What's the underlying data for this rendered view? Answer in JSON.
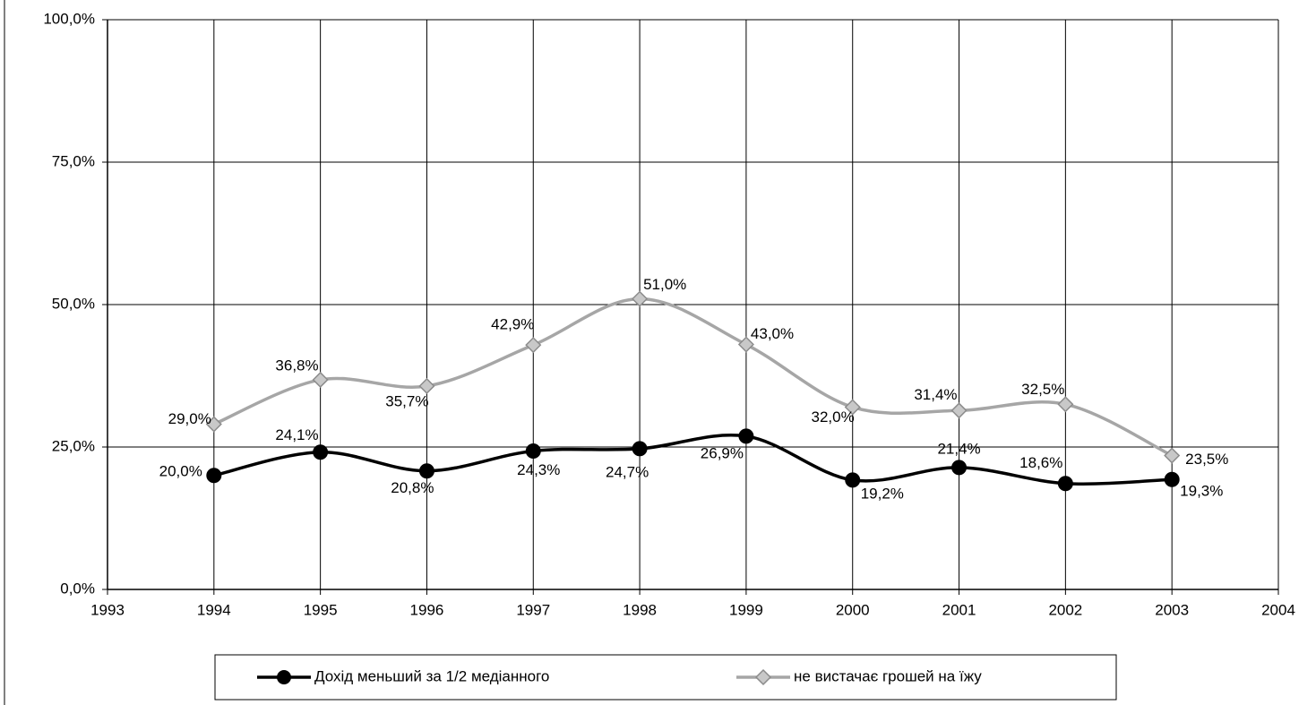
{
  "chart_data": {
    "type": "line",
    "x": [
      1994,
      1995,
      1996,
      1997,
      1998,
      1999,
      2000,
      2001,
      2002,
      2003
    ],
    "series": [
      {
        "name": "Дохід меньший за 1/2 медіанного",
        "color": "#000000",
        "marker": "circle",
        "values": [
          20.0,
          24.1,
          20.8,
          24.3,
          24.7,
          26.9,
          19.2,
          21.4,
          18.6,
          19.3
        ],
        "value_labels": [
          "20,0%",
          "24,1%",
          "20,8%",
          "24,3%",
          "24,7%",
          "26,9%",
          "19,2%",
          "21,4%",
          "18,6%",
          "19,3%"
        ]
      },
      {
        "name": "не вистачає грошей на їжу",
        "color": "#a6a6a6",
        "marker": "diamond",
        "values": [
          29.0,
          36.8,
          35.7,
          42.9,
          51.0,
          43.0,
          32.0,
          31.4,
          32.5,
          23.5
        ],
        "value_labels": [
          "29,0%",
          "36,8%",
          "35,7%",
          "42,9%",
          "51,0%",
          "43,0%",
          "32,0%",
          "31,4%",
          "32,5%",
          "23,5%"
        ]
      }
    ],
    "xlim": [
      1993,
      2004
    ],
    "xticks": [
      1993,
      1994,
      1995,
      1996,
      1997,
      1998,
      1999,
      2000,
      2001,
      2002,
      2003,
      2004
    ],
    "ylim": [
      0,
      100
    ],
    "yticks": [
      {
        "value": 0,
        "label": "0,0%"
      },
      {
        "value": 25,
        "label": "25,0%"
      },
      {
        "value": 50,
        "label": "50,0%"
      },
      {
        "value": 75,
        "label": "75,0%"
      },
      {
        "value": 100,
        "label": "100,0%"
      }
    ],
    "grid": true,
    "legend": "bottom"
  }
}
